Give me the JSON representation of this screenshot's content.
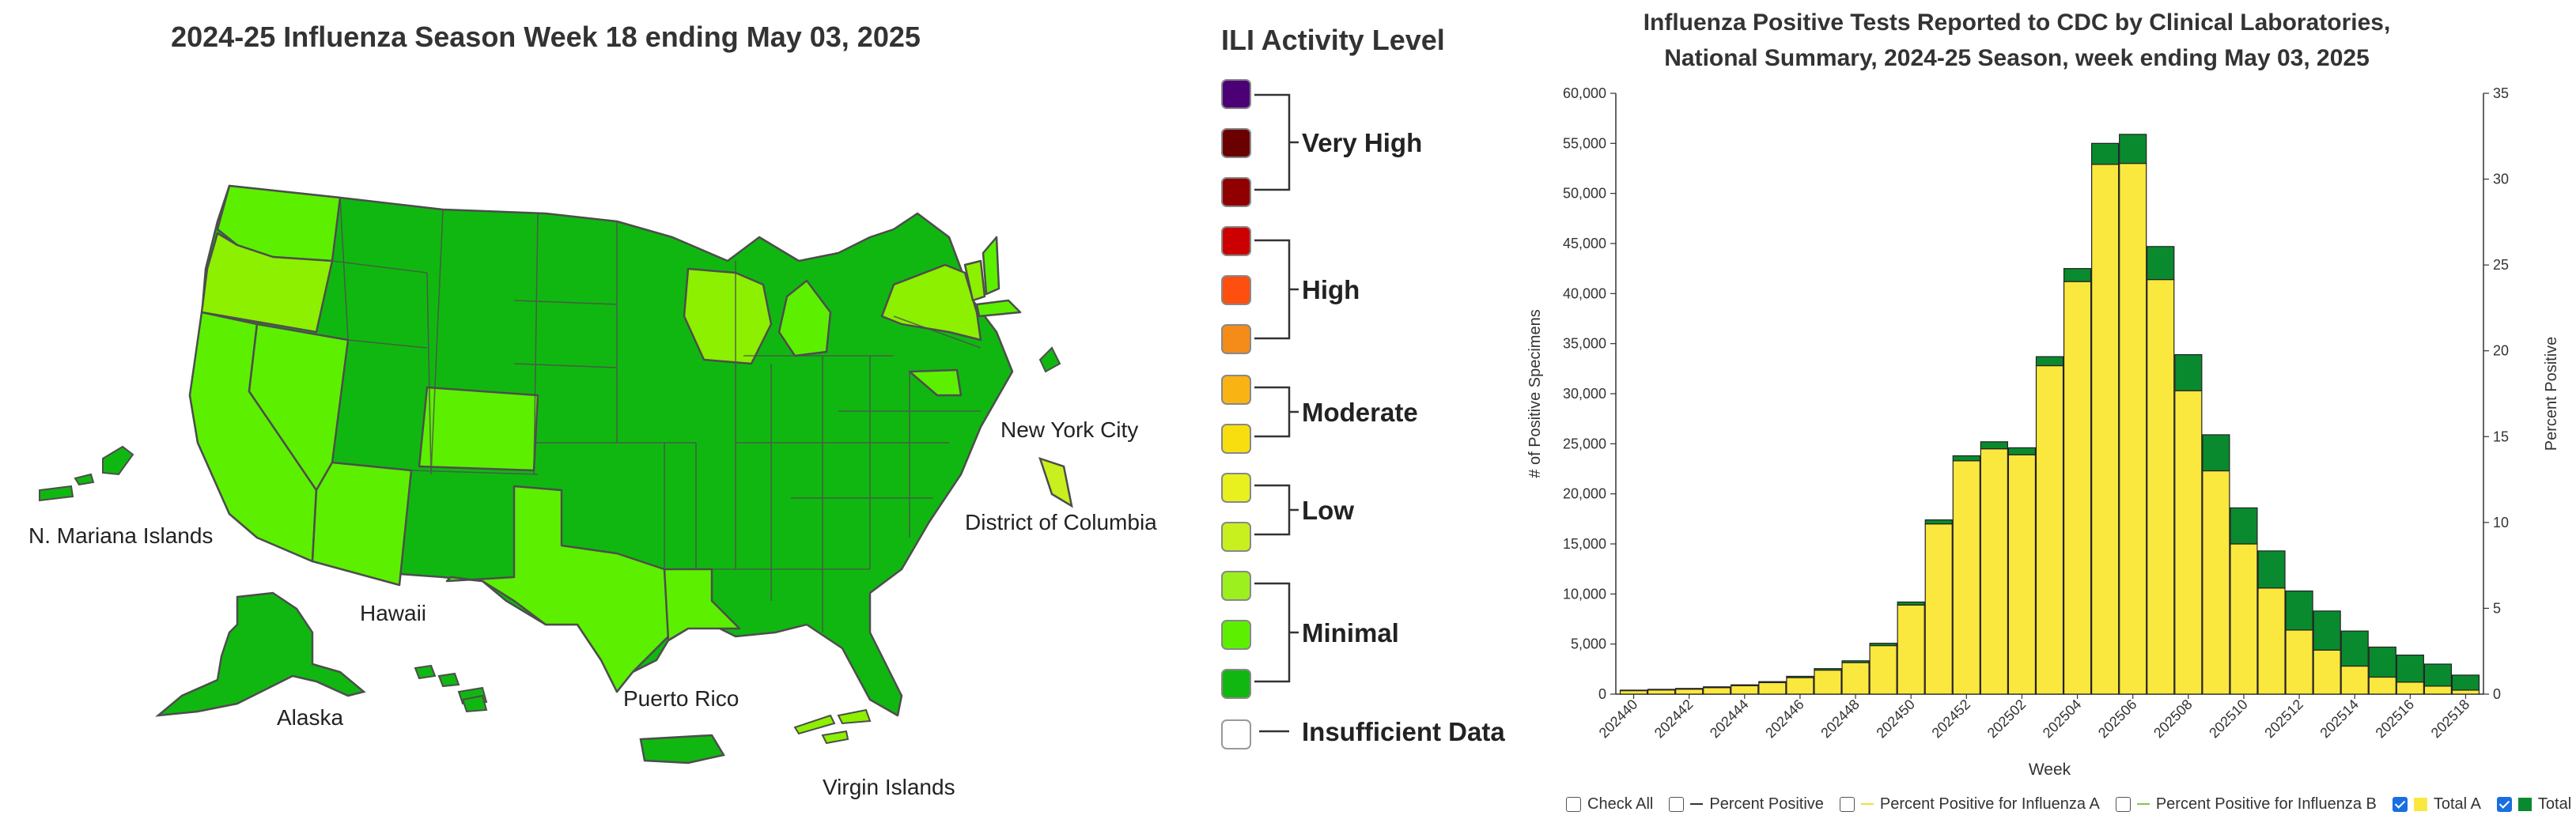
{
  "map": {
    "title": "2024-25 Influenza Season Week 18 ending May 03, 2025",
    "labels": {
      "nyc": "New York City",
      "dc": "District of Columbia",
      "mariana": "N. Mariana Islands",
      "hawaii": "Hawaii",
      "alaska": "Alaska",
      "puerto_rico": "Puerto Rico",
      "virgin_islands": "Virgin Islands"
    },
    "colors": {
      "minimal_dark": "#11b711",
      "minimal_mid": "#5cf000",
      "minimal_light": "#8cf000",
      "border": "#4d4d4d"
    }
  },
  "legend": {
    "title": "ILI Activity Level",
    "swatches": [
      "#4b0076",
      "#6b0000",
      "#900000",
      "#cc0000",
      "#ff4f0f",
      "#f58c19",
      "#f9b414",
      "#f8de0f",
      "#e8f01e",
      "#c8f01e",
      "#9cf01e",
      "#5cf000",
      "#11b711",
      "#ffffff"
    ],
    "groups": {
      "very_high": "Very High",
      "high": "High",
      "moderate": "Moderate",
      "low": "Low",
      "minimal": "Minimal",
      "insufficient": "Insufficient Data"
    }
  },
  "chart_data": {
    "type": "bar",
    "title_line1": "Influenza Positive Tests Reported to CDC by Clinical Laboratories,",
    "title_line2": "National Summary, 2024-25 Season, week ending May 03, 2025",
    "xlabel": "Week",
    "ylabel": "# of Positive Specimens",
    "y2label": "Percent Positive",
    "ylim": [
      0,
      60000
    ],
    "y_ticks": [
      "0",
      "5,000",
      "10,000",
      "15,000",
      "20,000",
      "25,000",
      "30,000",
      "35,000",
      "40,000",
      "45,000",
      "50,000",
      "55,000",
      "60,000"
    ],
    "y2lim": [
      0,
      35
    ],
    "y2_ticks": [
      "0",
      "5",
      "10",
      "15",
      "20",
      "25",
      "30",
      "35"
    ],
    "stacked": true,
    "grid": false,
    "categories": [
      "202440",
      "202441",
      "202442",
      "202443",
      "202444",
      "202445",
      "202446",
      "202447",
      "202448",
      "202449",
      "202450",
      "202451",
      "202452",
      "202501",
      "202502",
      "202503",
      "202504",
      "202505",
      "202506",
      "202507",
      "202508",
      "202509",
      "202510",
      "202511",
      "202512",
      "202513",
      "202514",
      "202515",
      "202516",
      "202517",
      "202518"
    ],
    "x_tick_labels": [
      "202440",
      "202442",
      "202444",
      "202446",
      "202448",
      "202450",
      "202452",
      "202502",
      "202504",
      "202506",
      "202508",
      "202510",
      "202512",
      "202514",
      "202516",
      "202518"
    ],
    "series": [
      {
        "name": "Total A",
        "color": "#fbe83f",
        "values": [
          350,
          420,
          500,
          650,
          850,
          1150,
          1650,
          2400,
          3150,
          4850,
          8900,
          17000,
          23300,
          24500,
          23900,
          32800,
          41200,
          52900,
          53000,
          41400,
          30300,
          22300,
          15000,
          10600,
          6400,
          4400,
          2800,
          1700,
          1200,
          800,
          400
        ]
      },
      {
        "name": "Total B",
        "color": "#0a8a2e",
        "values": [
          50,
          60,
          70,
          80,
          80,
          100,
          130,
          150,
          180,
          230,
          300,
          400,
          500,
          700,
          700,
          900,
          1300,
          2100,
          2900,
          3300,
          3600,
          3600,
          3600,
          3700,
          3900,
          3900,
          3500,
          3000,
          2700,
          2200,
          1500
        ]
      }
    ],
    "legend_items": {
      "check_all": "Check All",
      "percent_positive": "Percent Positive",
      "pp_flu_a": "Percent Positive for Influenza A",
      "pp_flu_b": "Percent Positive for Influenza B",
      "total_a": "Total A",
      "total_b": "Total B"
    },
    "legend_colors": {
      "percent_positive": "#333333",
      "pp_flu_a": "#f0e03c",
      "pp_flu_b": "#7ec850",
      "total_a": "#fbe83f",
      "total_b": "#0a8a2e"
    }
  }
}
